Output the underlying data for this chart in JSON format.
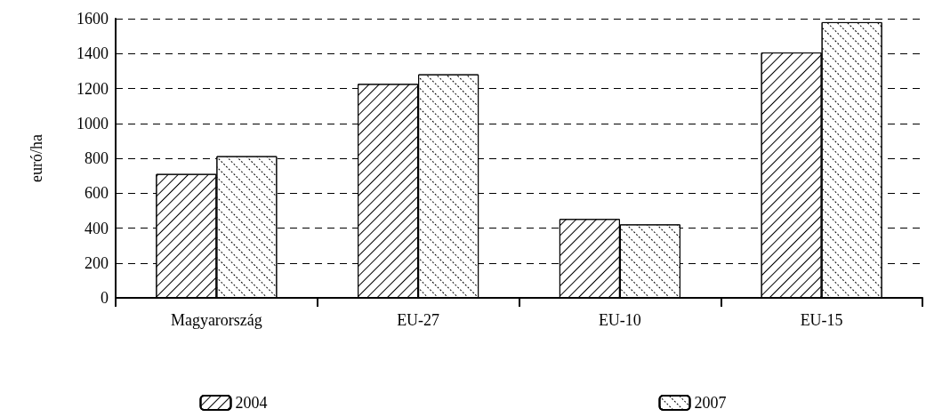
{
  "chart_data": {
    "type": "bar",
    "ylabel": "euró/ha",
    "categories": [
      "Magyarország",
      "EU-27",
      "EU-10",
      "EU-15"
    ],
    "series": [
      {
        "name": "2004",
        "color": "#ffffff",
        "values": [
          710,
          1226,
          452,
          1406
        ]
      },
      {
        "name": "2007",
        "color": "#ffffff",
        "values": [
          812,
          1281,
          421,
          1580
        ]
      }
    ],
    "ylim": [
      0,
      1600
    ],
    "yticks": [
      0,
      200,
      400,
      600,
      800,
      1000,
      1200,
      1400,
      1600
    ],
    "grid": "y",
    "legend": "bottom"
  }
}
